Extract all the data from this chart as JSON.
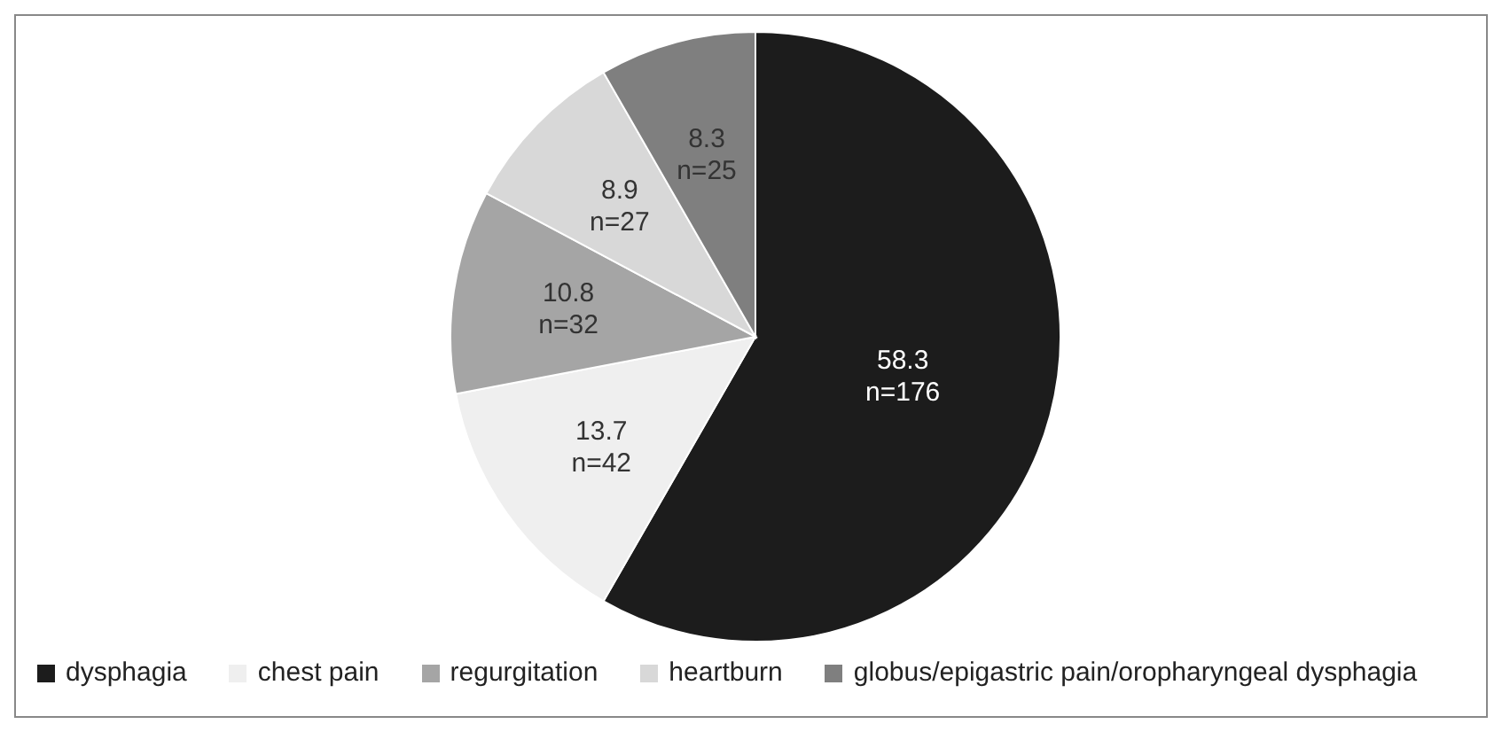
{
  "chart_data": {
    "type": "pie",
    "categories": [
      "dysphagia",
      "chest pain",
      "regurgitation",
      "heartburn",
      "globus/epigastric pain/oropharyngeal dysphagia"
    ],
    "values": [
      58.3,
      13.7,
      10.8,
      8.9,
      8.3
    ],
    "colors": [
      "#1c1c1c",
      "#efefef",
      "#a5a5a5",
      "#d8d8d8",
      "#7f7f7f"
    ],
    "value_labels": [
      "58.3\nn=176",
      "13.7\nn=42",
      "10.8\nn=32",
      "8.9\nn=27",
      "8.3\nn=25"
    ],
    "legend": "bottom"
  }
}
